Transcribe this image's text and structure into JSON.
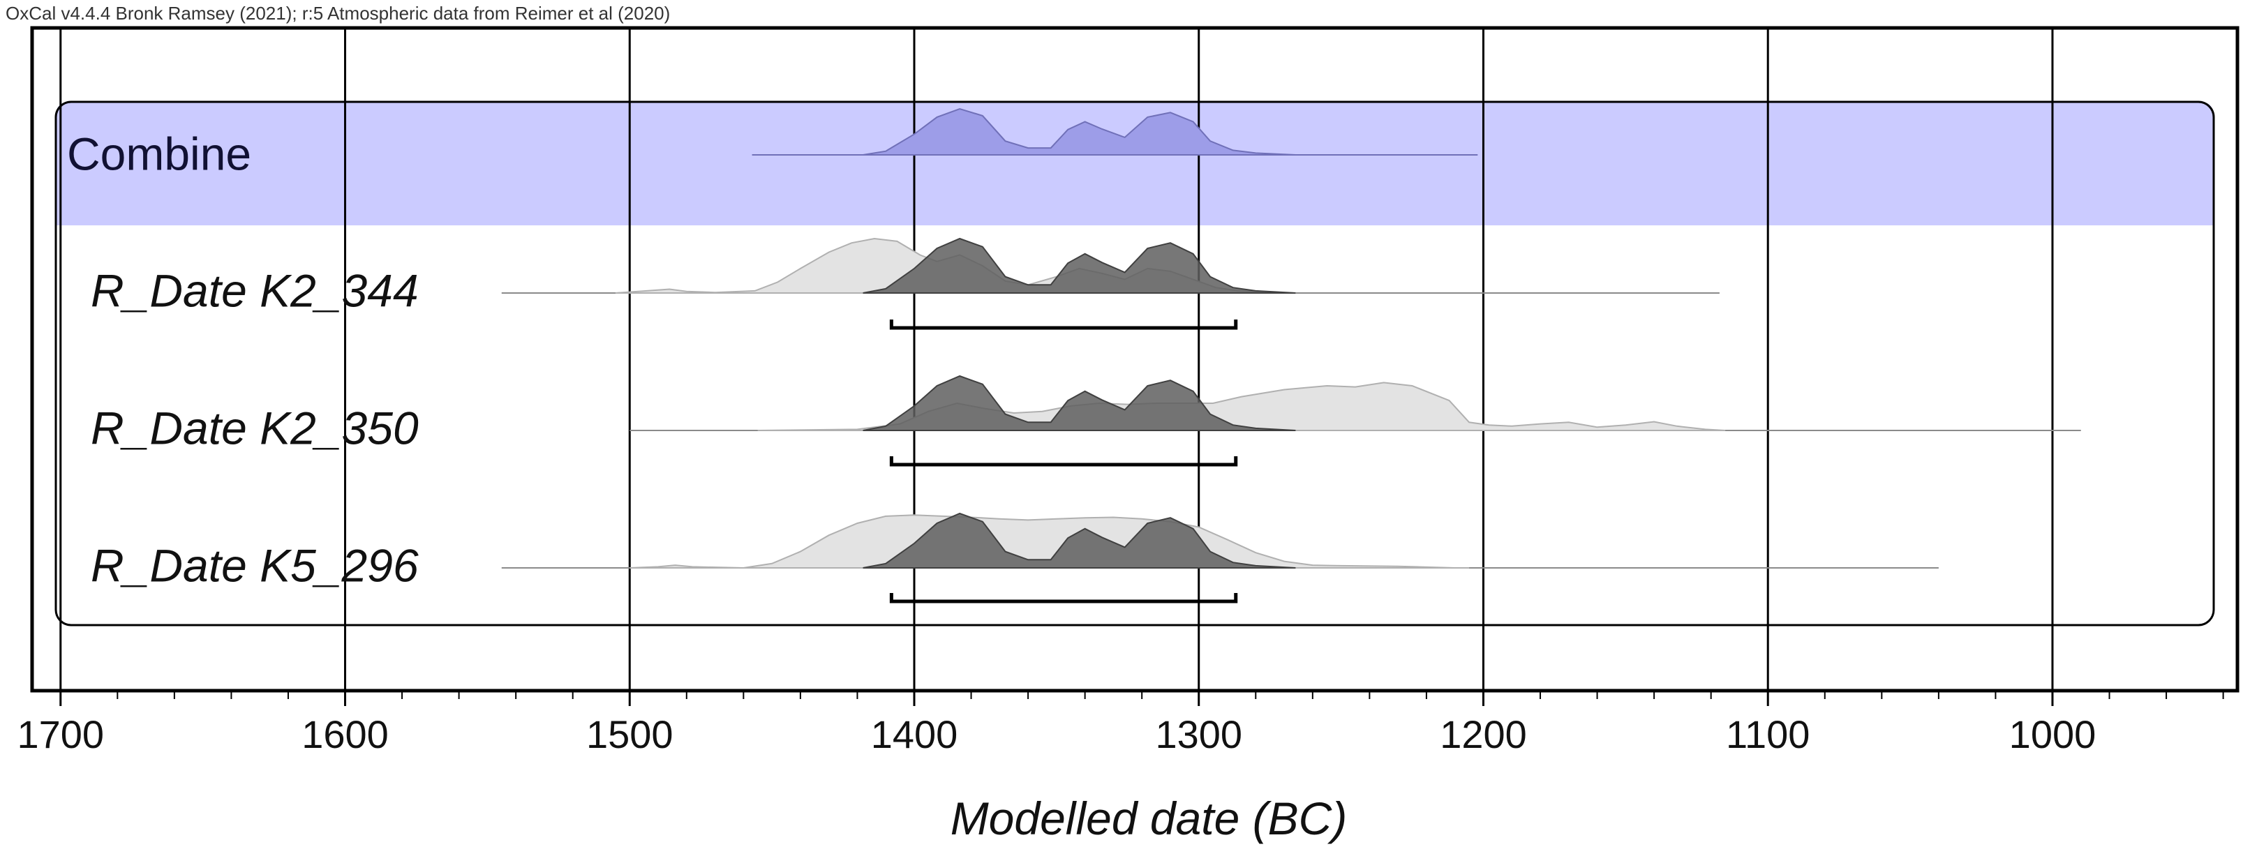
{
  "header": {
    "text": "OxCal v4.4.4 Bronk Ramsey (2021); r:5 Atmospheric data from Reimer et al (2020)"
  },
  "chart_data": {
    "type": "area",
    "title": "OxCal v4.4.4 Bronk Ramsey (2021); r:5 Atmospheric data from Reimer et al (2020)",
    "xlabel": "Modelled date (BC)",
    "ylabel": "",
    "xlim": [
      1710,
      935
    ],
    "x_direction": "descending",
    "xticks": [
      1700,
      1600,
      1500,
      1400,
      1300,
      1200,
      1100,
      1000
    ],
    "grid": true,
    "group": {
      "label": "Combine",
      "color": "#cbcbff",
      "range_line": [
        1457,
        1202
      ],
      "posterior": [
        [
          1418,
          0
        ],
        [
          1410,
          0.08
        ],
        [
          1400,
          0.45
        ],
        [
          1392,
          0.82
        ],
        [
          1384,
          1.0
        ],
        [
          1376,
          0.85
        ],
        [
          1368,
          0.3
        ],
        [
          1360,
          0.15
        ],
        [
          1352,
          0.15
        ],
        [
          1346,
          0.55
        ],
        [
          1340,
          0.72
        ],
        [
          1334,
          0.56
        ],
        [
          1326,
          0.38
        ],
        [
          1318,
          0.82
        ],
        [
          1310,
          0.92
        ],
        [
          1302,
          0.72
        ],
        [
          1296,
          0.3
        ],
        [
          1288,
          0.1
        ],
        [
          1280,
          0.04
        ],
        [
          1266,
          0
        ]
      ]
    },
    "series": [
      {
        "name": "R_Date K2_344",
        "label": "R_Date K2_344",
        "range_line": [
          1545,
          1117
        ],
        "range_95": [
          1408,
          1287
        ],
        "likelihood": [
          [
            1505,
            0
          ],
          [
            1494,
            0.04
          ],
          [
            1486,
            0.07
          ],
          [
            1480,
            0.03
          ],
          [
            1470,
            0.01
          ],
          [
            1456,
            0.04
          ],
          [
            1448,
            0.2
          ],
          [
            1440,
            0.45
          ],
          [
            1430,
            0.75
          ],
          [
            1422,
            0.92
          ],
          [
            1414,
            1.0
          ],
          [
            1406,
            0.95
          ],
          [
            1398,
            0.7
          ],
          [
            1392,
            0.58
          ],
          [
            1384,
            0.7
          ],
          [
            1376,
            0.5
          ],
          [
            1368,
            0.22
          ],
          [
            1360,
            0.15
          ],
          [
            1350,
            0.3
          ],
          [
            1342,
            0.45
          ],
          [
            1334,
            0.36
          ],
          [
            1326,
            0.25
          ],
          [
            1318,
            0.45
          ],
          [
            1310,
            0.4
          ],
          [
            1302,
            0.25
          ],
          [
            1294,
            0.1
          ],
          [
            1286,
            0.04
          ],
          [
            1280,
            0.02
          ],
          [
            1266,
            0
          ]
        ],
        "posterior": [
          [
            1418,
            0
          ],
          [
            1410,
            0.08
          ],
          [
            1400,
            0.45
          ],
          [
            1392,
            0.82
          ],
          [
            1384,
            1.0
          ],
          [
            1376,
            0.85
          ],
          [
            1368,
            0.3
          ],
          [
            1360,
            0.15
          ],
          [
            1352,
            0.15
          ],
          [
            1346,
            0.55
          ],
          [
            1340,
            0.72
          ],
          [
            1334,
            0.56
          ],
          [
            1326,
            0.38
          ],
          [
            1318,
            0.82
          ],
          [
            1310,
            0.92
          ],
          [
            1302,
            0.72
          ],
          [
            1296,
            0.3
          ],
          [
            1288,
            0.1
          ],
          [
            1280,
            0.04
          ],
          [
            1266,
            0
          ]
        ]
      },
      {
        "name": "R_Date K2_350",
        "label": "R_Date K2_350",
        "range_line": [
          1500,
          990
        ],
        "range_95": [
          1408,
          1287
        ],
        "likelihood": [
          [
            1455,
            0
          ],
          [
            1420,
            0.02
          ],
          [
            1405,
            0.12
          ],
          [
            1395,
            0.35
          ],
          [
            1385,
            0.5
          ],
          [
            1375,
            0.4
          ],
          [
            1365,
            0.32
          ],
          [
            1355,
            0.35
          ],
          [
            1345,
            0.45
          ],
          [
            1335,
            0.5
          ],
          [
            1325,
            0.48
          ],
          [
            1315,
            0.5
          ],
          [
            1305,
            0.5
          ],
          [
            1295,
            0.5
          ],
          [
            1285,
            0.62
          ],
          [
            1270,
            0.75
          ],
          [
            1255,
            0.82
          ],
          [
            1245,
            0.8
          ],
          [
            1235,
            0.88
          ],
          [
            1225,
            0.82
          ],
          [
            1212,
            0.55
          ],
          [
            1205,
            0.15
          ],
          [
            1198,
            0.1
          ],
          [
            1190,
            0.08
          ],
          [
            1180,
            0.12
          ],
          [
            1170,
            0.15
          ],
          [
            1160,
            0.06
          ],
          [
            1150,
            0.1
          ],
          [
            1140,
            0.16
          ],
          [
            1132,
            0.08
          ],
          [
            1122,
            0.02
          ],
          [
            1115,
            0
          ]
        ],
        "posterior": [
          [
            1418,
            0
          ],
          [
            1410,
            0.08
          ],
          [
            1400,
            0.45
          ],
          [
            1392,
            0.82
          ],
          [
            1384,
            1.0
          ],
          [
            1376,
            0.85
          ],
          [
            1368,
            0.3
          ],
          [
            1360,
            0.15
          ],
          [
            1352,
            0.15
          ],
          [
            1346,
            0.55
          ],
          [
            1340,
            0.72
          ],
          [
            1334,
            0.56
          ],
          [
            1326,
            0.38
          ],
          [
            1318,
            0.82
          ],
          [
            1310,
            0.92
          ],
          [
            1302,
            0.72
          ],
          [
            1296,
            0.3
          ],
          [
            1288,
            0.1
          ],
          [
            1280,
            0.04
          ],
          [
            1266,
            0
          ]
        ]
      },
      {
        "name": "R_Date K5_296",
        "label": "R_Date K5_296",
        "range_line": [
          1545,
          1040
        ],
        "range_95": [
          1408,
          1287
        ],
        "likelihood": [
          [
            1500,
            0
          ],
          [
            1490,
            0.02
          ],
          [
            1484,
            0.05
          ],
          [
            1478,
            0.02
          ],
          [
            1460,
            0
          ],
          [
            1450,
            0.08
          ],
          [
            1440,
            0.3
          ],
          [
            1430,
            0.6
          ],
          [
            1420,
            0.82
          ],
          [
            1410,
            0.95
          ],
          [
            1400,
            0.97
          ],
          [
            1390,
            0.95
          ],
          [
            1380,
            0.93
          ],
          [
            1370,
            0.9
          ],
          [
            1360,
            0.88
          ],
          [
            1350,
            0.9
          ],
          [
            1340,
            0.92
          ],
          [
            1330,
            0.93
          ],
          [
            1320,
            0.9
          ],
          [
            1310,
            0.85
          ],
          [
            1300,
            0.75
          ],
          [
            1290,
            0.52
          ],
          [
            1280,
            0.28
          ],
          [
            1270,
            0.12
          ],
          [
            1260,
            0.05
          ],
          [
            1250,
            0.04
          ],
          [
            1230,
            0.03
          ],
          [
            1210,
            0
          ],
          [
            1205,
            0
          ]
        ],
        "posterior": [
          [
            1418,
            0
          ],
          [
            1410,
            0.08
          ],
          [
            1400,
            0.45
          ],
          [
            1392,
            0.82
          ],
          [
            1384,
            1.0
          ],
          [
            1376,
            0.85
          ],
          [
            1368,
            0.3
          ],
          [
            1360,
            0.15
          ],
          [
            1352,
            0.15
          ],
          [
            1346,
            0.55
          ],
          [
            1340,
            0.72
          ],
          [
            1334,
            0.56
          ],
          [
            1326,
            0.38
          ],
          [
            1318,
            0.82
          ],
          [
            1310,
            0.92
          ],
          [
            1302,
            0.72
          ],
          [
            1296,
            0.3
          ],
          [
            1288,
            0.1
          ],
          [
            1280,
            0.04
          ],
          [
            1266,
            0
          ]
        ]
      }
    ]
  },
  "colors": {
    "combine_band": "#cbcbff",
    "combine_fill": "#9d9de8",
    "combine_stroke": "#7070b8",
    "likelihood_fill": "#e3e3e3",
    "likelihood_stroke": "#b0b0b0",
    "posterior_fill": "#5f5f5f",
    "posterior_stroke": "#404040",
    "grid": "#000000",
    "frame": "#000000"
  }
}
